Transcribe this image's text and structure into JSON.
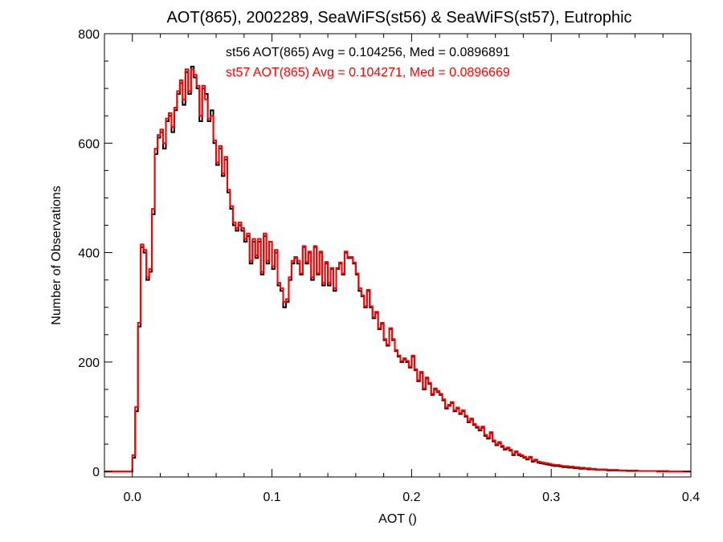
{
  "chart_data": {
    "type": "line",
    "title": "AOT(865), 2002289, SeaWiFS(st56) & SeaWiFS(st57), Eutrophic",
    "xlabel": "AOT ()",
    "ylabel": "Number of Observations",
    "xlim": [
      -0.02,
      0.4
    ],
    "ylim": [
      -10,
      800
    ],
    "x_ticks": [
      0.0,
      0.1,
      0.2,
      0.3,
      0.4
    ],
    "x_tick_labels": [
      "0.0",
      "0.1",
      "0.2",
      "0.3",
      "0.4"
    ],
    "y_ticks": [
      0,
      200,
      400,
      600,
      800
    ],
    "y_tick_labels": [
      "0",
      "200",
      "400",
      "600",
      "800"
    ],
    "grid": false,
    "annotations": [
      {
        "text": "st56 AOT(865) Avg = 0.104256, Med = 0.0896891",
        "color": "#000000"
      },
      {
        "text": "st57 AOT(865) Avg = 0.104271, Med = 0.0896669",
        "color": "#ff0000"
      }
    ],
    "step": "histogram",
    "x": [
      0.0,
      0.002,
      0.004,
      0.006,
      0.008,
      0.01,
      0.012,
      0.014,
      0.016,
      0.018,
      0.02,
      0.022,
      0.024,
      0.026,
      0.028,
      0.03,
      0.032,
      0.034,
      0.036,
      0.038,
      0.04,
      0.042,
      0.044,
      0.046,
      0.048,
      0.05,
      0.052,
      0.054,
      0.056,
      0.058,
      0.06,
      0.062,
      0.064,
      0.066,
      0.068,
      0.07,
      0.072,
      0.074,
      0.076,
      0.078,
      0.08,
      0.082,
      0.084,
      0.086,
      0.088,
      0.09,
      0.092,
      0.094,
      0.096,
      0.098,
      0.1,
      0.102,
      0.104,
      0.106,
      0.108,
      0.11,
      0.112,
      0.114,
      0.116,
      0.118,
      0.12,
      0.122,
      0.124,
      0.126,
      0.128,
      0.13,
      0.132,
      0.134,
      0.136,
      0.138,
      0.14,
      0.142,
      0.144,
      0.146,
      0.148,
      0.15,
      0.152,
      0.154,
      0.156,
      0.158,
      0.16,
      0.162,
      0.164,
      0.166,
      0.168,
      0.17,
      0.172,
      0.174,
      0.176,
      0.178,
      0.18,
      0.182,
      0.184,
      0.186,
      0.188,
      0.19,
      0.192,
      0.194,
      0.196,
      0.198,
      0.2,
      0.202,
      0.204,
      0.206,
      0.208,
      0.21,
      0.212,
      0.214,
      0.216,
      0.218,
      0.22,
      0.222,
      0.224,
      0.226,
      0.228,
      0.23,
      0.232,
      0.234,
      0.236,
      0.238,
      0.24,
      0.242,
      0.244,
      0.246,
      0.248,
      0.25,
      0.252,
      0.254,
      0.256,
      0.258,
      0.26,
      0.262,
      0.264,
      0.266,
      0.268,
      0.27,
      0.272,
      0.274,
      0.276,
      0.278,
      0.28,
      0.282,
      0.284,
      0.286,
      0.288,
      0.29,
      0.292,
      0.294,
      0.296,
      0.298,
      0.3,
      0.302,
      0.304,
      0.306,
      0.308,
      0.31,
      0.312,
      0.314,
      0.316,
      0.318,
      0.32,
      0.322,
      0.324,
      0.326,
      0.328,
      0.33,
      0.332,
      0.334,
      0.336,
      0.338,
      0.34,
      0.342,
      0.344,
      0.346,
      0.348,
      0.35,
      0.352,
      0.354,
      0.356,
      0.358,
      0.36,
      0.362,
      0.364,
      0.366,
      0.368,
      0.37,
      0.372,
      0.374,
      0.376,
      0.378,
      0.38,
      0.382,
      0.384,
      0.386,
      0.388,
      0.39,
      0.392,
      0.394,
      0.396,
      0.398
    ],
    "series": [
      {
        "name": "st56",
        "color": "#000000",
        "values": [
          25,
          110,
          265,
          410,
          400,
          350,
          365,
          470,
          580,
          610,
          620,
          590,
          640,
          650,
          620,
          660,
          690,
          710,
          670,
          730,
          690,
          740,
          720,
          700,
          640,
          700,
          690,
          640,
          660,
          600,
          560,
          590,
          540,
          570,
          510,
          480,
          450,
          440,
          450,
          440,
          420,
          430,
          380,
          420,
          390,
          420,
          360,
          430,
          380,
          420,
          370,
          400,
          340,
          330,
          300,
          310,
          350,
          380,
          390,
          380,
          360,
          410,
          380,
          400,
          350,
          410,
          360,
          400,
          340,
          380,
          340,
          370,
          330,
          370,
          380,
          360,
          400,
          390,
          390,
          380,
          360,
          330,
          320,
          300,
          330,
          300,
          280,
          290,
          260,
          270,
          240,
          230,
          260,
          240,
          220,
          210,
          200,
          205,
          200,
          190,
          210,
          185,
          165,
          180,
          150,
          170,
          160,
          140,
          150,
          145,
          140,
          130,
          115,
          120,
          125,
          110,
          115,
          105,
          110,
          100,
          90,
          95,
          85,
          80,
          75,
          80,
          65,
          60,
          70,
          55,
          48,
          52,
          45,
          40,
          42,
          38,
          30,
          35,
          30,
          28,
          25,
          22,
          25,
          18,
          20,
          16,
          15,
          14,
          13,
          12,
          11,
          10,
          10,
          9,
          8,
          8,
          7,
          7,
          6,
          6,
          5,
          5,
          5,
          4,
          4,
          4,
          3,
          3,
          3,
          3,
          2,
          2,
          2,
          2,
          2,
          2,
          2,
          1,
          1,
          1,
          1,
          1,
          1,
          1,
          1,
          1,
          1,
          1,
          0,
          0,
          0,
          0,
          0,
          0,
          0,
          0,
          0,
          0,
          0,
          0
        ]
      },
      {
        "name": "st57",
        "color": "#ff0000",
        "values": [
          30,
          118,
          272,
          415,
          405,
          355,
          370,
          480,
          590,
          615,
          625,
          600,
          645,
          655,
          630,
          665,
          695,
          715,
          680,
          735,
          695,
          735,
          725,
          705,
          650,
          705,
          680,
          645,
          650,
          605,
          565,
          595,
          545,
          575,
          515,
          485,
          455,
          445,
          455,
          445,
          425,
          435,
          385,
          425,
          395,
          425,
          365,
          435,
          385,
          420,
          375,
          405,
          345,
          335,
          310,
          315,
          355,
          385,
          392,
          385,
          362,
          412,
          383,
          402,
          355,
          412,
          362,
          402,
          345,
          383,
          345,
          372,
          335,
          372,
          382,
          362,
          402,
          392,
          392,
          382,
          362,
          335,
          322,
          302,
          332,
          302,
          282,
          292,
          262,
          272,
          242,
          232,
          262,
          242,
          222,
          212,
          202,
          207,
          202,
          192,
          212,
          187,
          167,
          182,
          152,
          172,
          162,
          142,
          152,
          147,
          142,
          132,
          117,
          122,
          127,
          112,
          117,
          107,
          112,
          102,
          92,
          97,
          87,
          82,
          77,
          82,
          67,
          62,
          72,
          57,
          50,
          54,
          47,
          42,
          44,
          40,
          32,
          37,
          32,
          30,
          27,
          24,
          27,
          20,
          22,
          18,
          17,
          16,
          15,
          14,
          13,
          12,
          12,
          11,
          10,
          10,
          9,
          9,
          8,
          8,
          7,
          7,
          6,
          6,
          5,
          5,
          4,
          4,
          4,
          4,
          3,
          3,
          3,
          3,
          2,
          2,
          2,
          2,
          2,
          2,
          2,
          1,
          1,
          1,
          1,
          1,
          1,
          1,
          1,
          1,
          1,
          1,
          0,
          0,
          0,
          0,
          0,
          0,
          0,
          0
        ]
      }
    ]
  }
}
